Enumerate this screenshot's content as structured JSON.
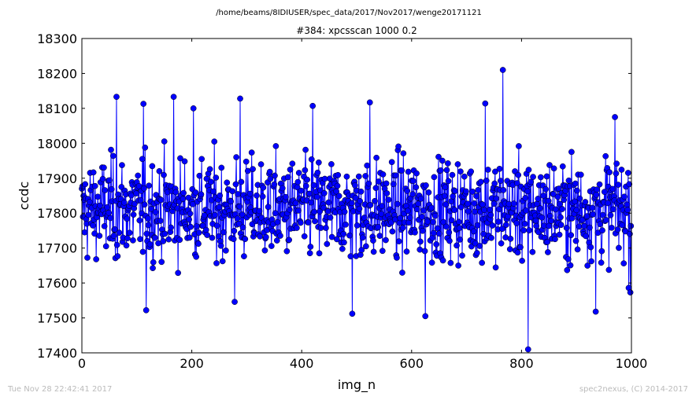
{
  "figure": {
    "suptitle": "/home/beams/8IDIUSER/spec_data/2017/Nov2017/wenge20171121",
    "footer_left": "Tue Nov 28 22:42:41 2017",
    "footer_right": "spec2nexus, (C) 2014-2017"
  },
  "chart_data": {
    "type": "line",
    "title": "#384: xpcsscan 1000 0.2",
    "xlabel": "img_n",
    "ylabel": "ccdc",
    "xlim": [
      0,
      1000
    ],
    "ylim": [
      17400,
      18300
    ],
    "xticks": [
      0,
      200,
      400,
      600,
      800,
      1000
    ],
    "yticks": [
      17400,
      17500,
      17600,
      17700,
      17800,
      17900,
      18000,
      18100,
      18200,
      18300
    ],
    "grid": false,
    "markers": "circle",
    "series_color": "#0000ff",
    "n_points": 1000,
    "highlights": [
      {
        "x": 0,
        "y": 17870
      },
      {
        "x": 63,
        "y": 18133
      },
      {
        "x": 112,
        "y": 18113
      },
      {
        "x": 117,
        "y": 17522
      },
      {
        "x": 167,
        "y": 18133
      },
      {
        "x": 203,
        "y": 18100
      },
      {
        "x": 278,
        "y": 17546
      },
      {
        "x": 288,
        "y": 18128
      },
      {
        "x": 420,
        "y": 18107
      },
      {
        "x": 492,
        "y": 17512
      },
      {
        "x": 524,
        "y": 18117
      },
      {
        "x": 625,
        "y": 17505
      },
      {
        "x": 734,
        "y": 18114
      },
      {
        "x": 766,
        "y": 18210
      },
      {
        "x": 812,
        "y": 17410
      },
      {
        "x": 935,
        "y": 17518
      },
      {
        "x": 970,
        "y": 18075
      },
      {
        "x": 998,
        "y": 17573
      }
    ]
  }
}
